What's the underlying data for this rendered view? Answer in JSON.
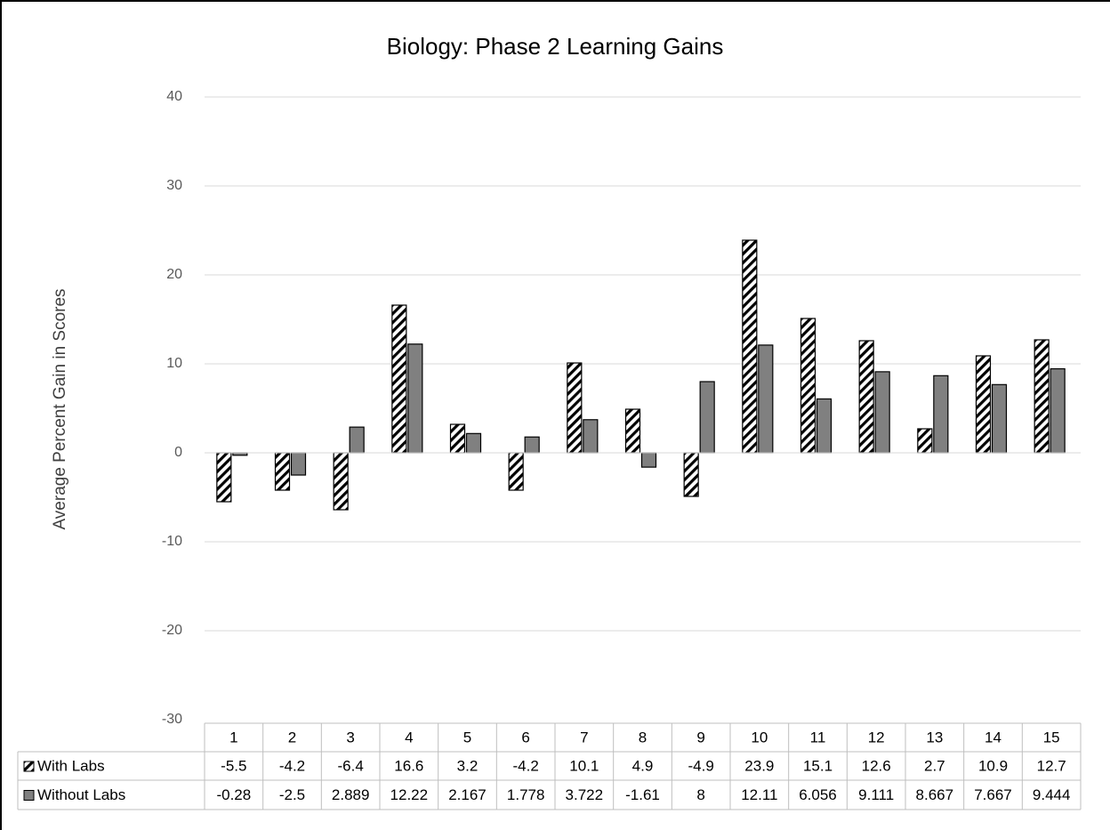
{
  "chart_data": {
    "type": "bar",
    "title": "Biology: Phase 2 Learning Gains",
    "y_label": "Average Percent Gain in Scores",
    "categories": [
      "1",
      "2",
      "3",
      "4",
      "5",
      "6",
      "7",
      "8",
      "9",
      "10",
      "11",
      "12",
      "13",
      "14",
      "15"
    ],
    "series": [
      {
        "name": "With Labs",
        "color": "#000000",
        "pattern": "hatch",
        "values": [
          -5.5,
          -4.2,
          -6.4,
          16.6,
          3.2,
          -4.2,
          10.1,
          4.9,
          -4.9,
          23.9,
          15.1,
          12.6,
          2.7,
          10.9,
          12.7
        ]
      },
      {
        "name": "Without Labs",
        "color": "#808080",
        "values": [
          -0.28,
          -2.5,
          2.889,
          12.22,
          2.167,
          1.778,
          3.722,
          -1.61,
          8,
          12.11,
          6.056,
          9.111,
          8.667,
          7.667,
          9.444
        ]
      }
    ],
    "ylim": [
      -30,
      40
    ],
    "yticks": [
      -30,
      -20,
      -10,
      0,
      10,
      20,
      30,
      40
    ],
    "grid": true,
    "data_table": true
  }
}
